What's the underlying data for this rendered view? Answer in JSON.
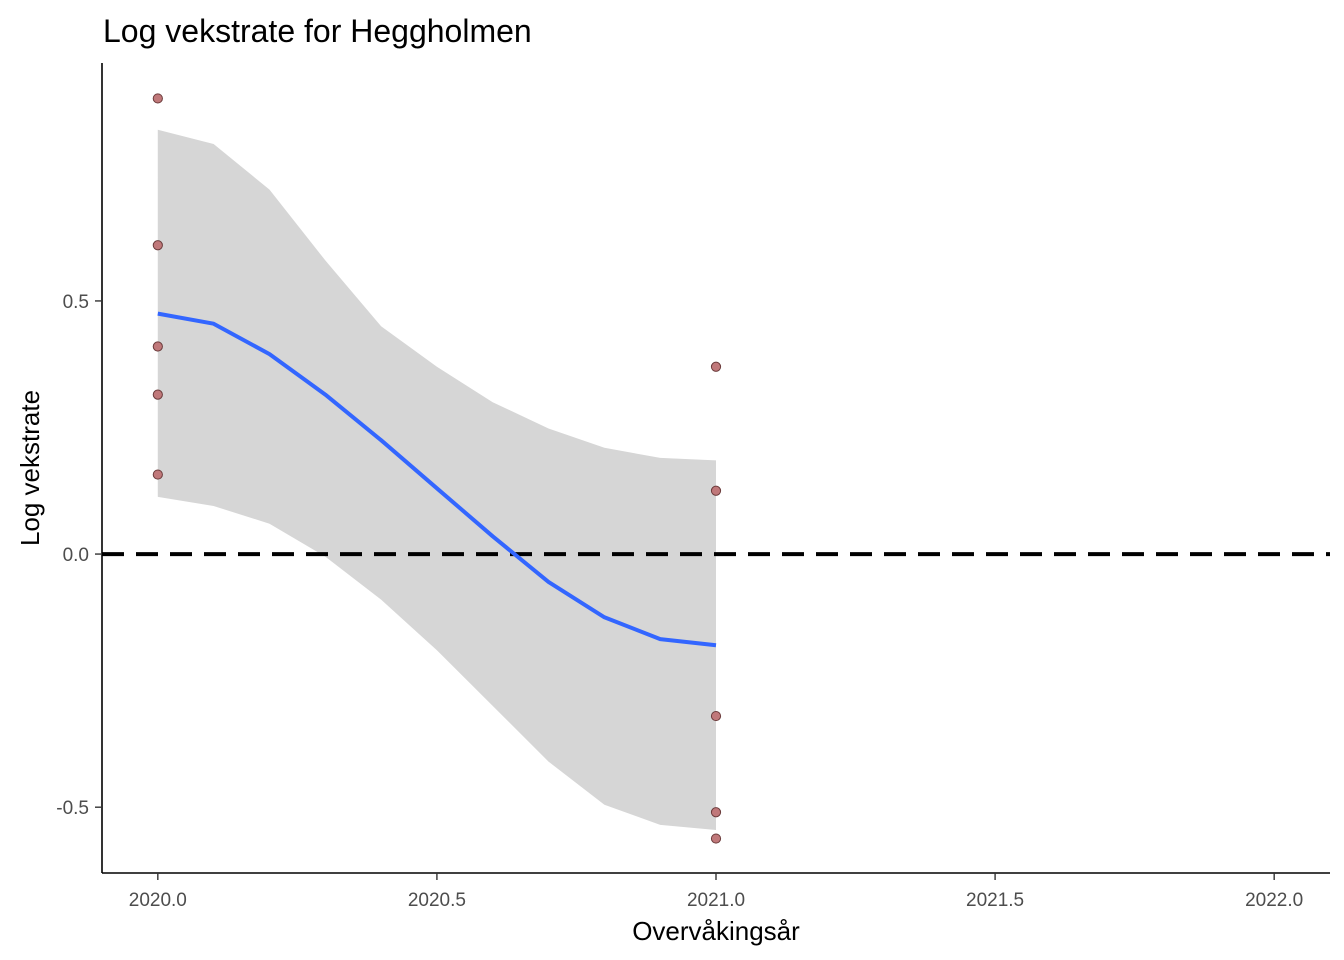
{
  "chart_data": {
    "type": "scatter",
    "title": "Log vekstrate for Heggholmen",
    "xlabel": "Overvåkingsår",
    "ylabel": "Log vekstrate",
    "xlim": [
      2019.9,
      2022.1
    ],
    "ylim": [
      -0.63,
      0.97
    ],
    "xticks": [
      2020.0,
      2020.5,
      2021.0,
      2021.5,
      2022.0
    ],
    "xtick_labels": [
      "2020.0",
      "2020.5",
      "2021.0",
      "2021.5",
      "2022.0"
    ],
    "yticks": [
      -0.5,
      0.0,
      0.5
    ],
    "ytick_labels": [
      "-0.5",
      "0.0",
      "0.5"
    ],
    "grid": false,
    "legend": "none",
    "reference_line": {
      "y": 0.0,
      "style": "dashed",
      "color": "#000000"
    },
    "points": {
      "color": "#c0787a",
      "x": [
        2020.0,
        2020.0,
        2020.0,
        2020.0,
        2020.0,
        2021.0,
        2021.0,
        2021.0,
        2021.0,
        2021.0
      ],
      "y": [
        0.9,
        0.61,
        0.41,
        0.315,
        0.157,
        0.37,
        0.125,
        -0.32,
        -0.51,
        -0.562
      ]
    },
    "smooth": {
      "color": "#3366ff",
      "band_color": "#d6d6d6",
      "x": [
        2020.0,
        2020.1,
        2020.2,
        2020.3,
        2020.4,
        2020.5,
        2020.6,
        2020.7,
        2020.8,
        2020.9,
        2021.0
      ],
      "y": [
        0.475,
        0.455,
        0.395,
        0.315,
        0.225,
        0.13,
        0.035,
        -0.055,
        -0.125,
        -0.168,
        -0.18
      ],
      "lower": [
        0.113,
        0.095,
        0.06,
        -0.005,
        -0.09,
        -0.19,
        -0.3,
        -0.41,
        -0.495,
        -0.535,
        -0.545
      ],
      "upper": [
        0.838,
        0.81,
        0.72,
        0.58,
        0.45,
        0.37,
        0.3,
        0.248,
        0.21,
        0.19,
        0.185
      ]
    }
  }
}
